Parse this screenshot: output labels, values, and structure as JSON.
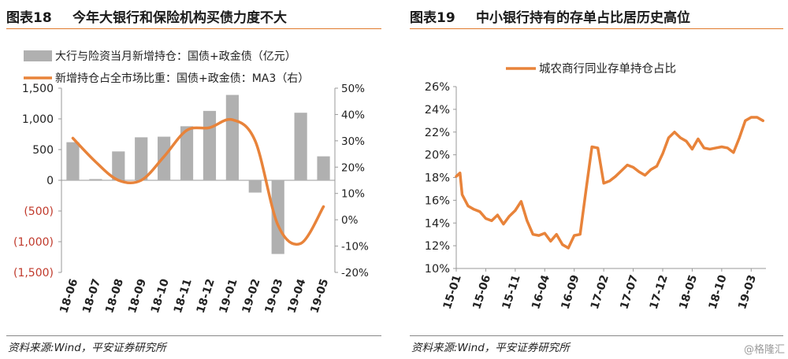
{
  "figures": [
    {
      "number": "图表18",
      "title": "今年大银行和保险机构买债力度不大",
      "source": "资料来源:Wind，平安证券研究所"
    },
    {
      "number": "图表19",
      "title": "中小银行持有的存单占比居历史高位",
      "source": "资料来源:Wind，平安证券研究所"
    }
  ],
  "corner_mark": "@格隆汇",
  "colors": {
    "bar": "#b0b0b0",
    "line": "#e8833a",
    "negative_tick": "#c0392b",
    "accent_rule": "#e07a2c"
  },
  "chart_data": [
    {
      "type": "bar",
      "categories": [
        "18-06",
        "18-07",
        "18-08",
        "18-09",
        "18-10",
        "18-11",
        "18-12",
        "19-01",
        "19-02",
        "19-03",
        "19-04",
        "19-05"
      ],
      "series": [
        {
          "name": "大行与险资当月新增持仓：国债+政金债（亿元）",
          "type": "bar",
          "axis": "left",
          "values": [
            620,
            20,
            470,
            700,
            710,
            880,
            1130,
            1390,
            -200,
            -1200,
            1100,
            390
          ]
        },
        {
          "name": "新增持仓占全市场比重：国债+政金债：MA3（右）",
          "type": "line",
          "axis": "right",
          "values": [
            31,
            22,
            15,
            15,
            24,
            34,
            35,
            38,
            30,
            -2,
            -9,
            5
          ]
        }
      ],
      "y_left": {
        "ylim": [
          -1500,
          1500
        ],
        "ticks": [
          "1,500",
          "1,000",
          "500",
          "0",
          "(500)",
          "(1,000)",
          "(1,500)"
        ]
      },
      "y_right": {
        "ylim": [
          -20,
          50
        ],
        "ticks": [
          "50%",
          "40%",
          "30%",
          "20%",
          "10%",
          "0%",
          "-10%",
          "-20%"
        ]
      },
      "legend": "top-left",
      "grid": false
    },
    {
      "type": "line",
      "series": [
        {
          "name": "城农商行同业存单持仓占比",
          "points": [
            [
              "2015-01",
              18.1
            ],
            [
              "2015-01-20",
              18.4
            ],
            [
              "2015-02",
              16.5
            ],
            [
              "2015-03",
              15.5
            ],
            [
              "2015-04",
              15.2
            ],
            [
              "2015-05",
              15.0
            ],
            [
              "2015-06",
              14.4
            ],
            [
              "2015-07",
              14.2
            ],
            [
              "2015-08",
              14.7
            ],
            [
              "2015-09",
              13.9
            ],
            [
              "2015-10",
              14.6
            ],
            [
              "2015-11",
              15.1
            ],
            [
              "2015-12",
              15.9
            ],
            [
              "2016-01",
              14.2
            ],
            [
              "2016-02",
              13.0
            ],
            [
              "2016-03",
              12.9
            ],
            [
              "2016-04",
              13.1
            ],
            [
              "2016-05",
              12.4
            ],
            [
              "2016-06",
              13.0
            ],
            [
              "2016-07",
              12.1
            ],
            [
              "2016-08",
              11.8
            ],
            [
              "2016-09",
              12.9
            ],
            [
              "2016-10",
              13.0
            ],
            [
              "2016-11",
              16.9
            ],
            [
              "2016-12",
              20.7
            ],
            [
              "2017-01",
              20.6
            ],
            [
              "2017-02",
              17.5
            ],
            [
              "2017-03",
              17.7
            ],
            [
              "2017-04",
              18.1
            ],
            [
              "2017-05",
              18.6
            ],
            [
              "2017-06",
              19.1
            ],
            [
              "2017-07",
              18.9
            ],
            [
              "2017-08",
              18.5
            ],
            [
              "2017-09",
              18.2
            ],
            [
              "2017-10",
              18.7
            ],
            [
              "2017-11",
              19.0
            ],
            [
              "2017-12",
              20.1
            ],
            [
              "2018-01",
              21.5
            ],
            [
              "2018-02",
              22.0
            ],
            [
              "2018-03",
              21.5
            ],
            [
              "2018-04",
              21.2
            ],
            [
              "2018-05",
              20.5
            ],
            [
              "2018-06",
              21.4
            ],
            [
              "2018-07",
              20.6
            ],
            [
              "2018-08",
              20.5
            ],
            [
              "2018-09",
              20.6
            ],
            [
              "2018-10",
              20.7
            ],
            [
              "2018-11",
              20.6
            ],
            [
              "2018-12",
              20.2
            ],
            [
              "2019-01",
              21.5
            ],
            [
              "2019-02",
              23.0
            ],
            [
              "2019-03",
              23.3
            ],
            [
              "2019-04",
              23.3
            ],
            [
              "2019-05",
              23.0
            ]
          ]
        }
      ],
      "x_ticks": [
        "15-01",
        "15-06",
        "15-11",
        "16-04",
        "16-09",
        "17-02",
        "17-07",
        "17-12",
        "18-05",
        "18-10",
        "19-03"
      ],
      "ylim": [
        10,
        26
      ],
      "y_ticks": [
        "26%",
        "24%",
        "22%",
        "20%",
        "18%",
        "16%",
        "14%",
        "12%",
        "10%"
      ],
      "legend": "top-center",
      "grid": false
    }
  ]
}
